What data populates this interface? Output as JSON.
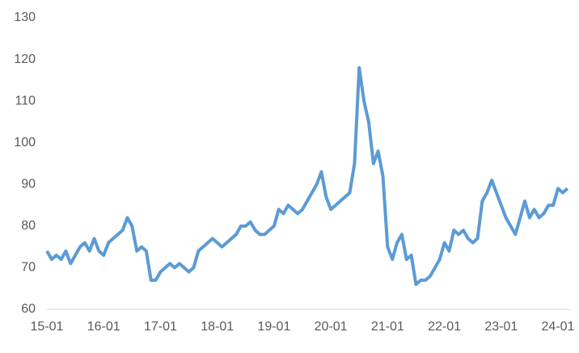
{
  "chart_data": {
    "type": "line",
    "categories": [
      "15-01",
      null,
      null,
      null,
      null,
      null,
      null,
      null,
      null,
      null,
      null,
      null,
      "16-01",
      null,
      null,
      null,
      null,
      null,
      null,
      null,
      null,
      null,
      null,
      null,
      "17-01",
      null,
      null,
      null,
      null,
      null,
      null,
      null,
      null,
      null,
      null,
      null,
      "18-01",
      null,
      null,
      null,
      null,
      null,
      null,
      null,
      null,
      null,
      null,
      null,
      "19-01",
      null,
      null,
      null,
      null,
      null,
      null,
      null,
      null,
      null,
      null,
      null,
      "20-01",
      null,
      null,
      null,
      null,
      null,
      null,
      null,
      null,
      null,
      null,
      null,
      "21-01",
      null,
      null,
      null,
      null,
      null,
      null,
      null,
      null,
      null,
      null,
      null,
      "22-01",
      null,
      null,
      null,
      null,
      null,
      null,
      null,
      null,
      null,
      null,
      null,
      "23-01",
      null,
      null,
      null,
      null,
      null,
      null,
      null,
      null,
      null,
      null,
      null,
      "24-01",
      null,
      null
    ],
    "values": [
      74,
      72,
      73,
      72,
      74,
      71,
      73,
      75,
      76,
      74,
      77,
      74,
      73,
      76,
      77,
      78,
      79,
      82,
      80,
      74,
      75,
      74,
      67,
      67,
      69,
      70,
      71,
      70,
      71,
      70,
      69,
      70,
      74,
      75,
      76,
      77,
      76,
      75,
      76,
      77,
      78,
      80,
      80,
      81,
      79,
      78,
      78,
      79,
      80,
      84,
      83,
      85,
      84,
      83,
      84,
      86,
      88,
      90,
      93,
      87,
      84,
      85,
      86,
      87,
      88,
      95,
      118,
      110,
      105,
      95,
      98,
      92,
      75,
      72,
      76,
      78,
      72,
      73,
      66,
      67,
      67,
      68,
      70,
      72,
      76,
      74,
      79,
      78,
      79,
      77,
      76,
      77,
      86,
      88,
      91,
      88,
      85,
      82,
      80,
      78,
      82,
      86,
      82,
      84,
      82,
      83,
      85,
      85,
      89,
      88,
      89
    ],
    "color": "#5b9bd5",
    "ylim": [
      60,
      130
    ],
    "yticks": [
      60,
      70,
      80,
      90,
      100,
      110,
      120,
      130
    ],
    "grid": false
  }
}
